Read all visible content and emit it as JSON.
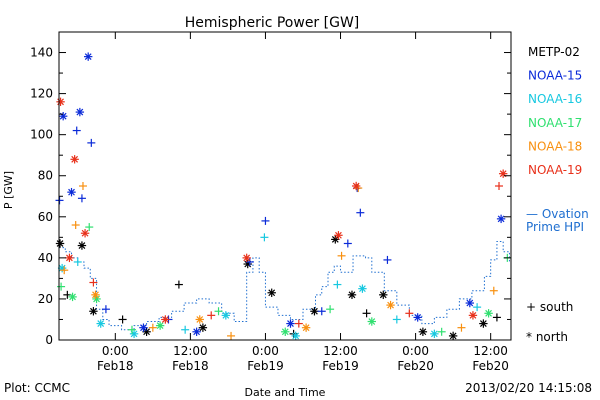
{
  "chart_data": {
    "type": "scatter",
    "title": "Hemispheric Power [GW]",
    "ylabel": "P [GW]",
    "xlabel": "Date and Time",
    "ylim": [
      0,
      150
    ],
    "yticks": [
      0,
      20,
      40,
      60,
      80,
      100,
      120,
      140
    ],
    "xlim": [
      "2013-02-17T15:00",
      "2013-02-20T15:15"
    ],
    "xticks": [
      {
        "t": "2013-02-18T00:00",
        "top": "0:00",
        "bottom": "Feb18"
      },
      {
        "t": "2013-02-18T12:00",
        "top": "12:00",
        "bottom": "Feb18"
      },
      {
        "t": "2013-02-19T00:00",
        "top": "0:00",
        "bottom": "Feb19"
      },
      {
        "t": "2013-02-19T12:00",
        "top": "12:00",
        "bottom": "Feb19"
      },
      {
        "t": "2013-02-20T00:00",
        "top": "0:00",
        "bottom": "Feb20"
      },
      {
        "t": "2013-02-20T12:00",
        "top": "12:00",
        "bottom": "Feb20"
      }
    ],
    "legend_placement": "right",
    "marker_legend": [
      {
        "marker": "+",
        "label": "south"
      },
      {
        "marker": "*",
        "label": "north"
      }
    ],
    "series": [
      {
        "name": "METP-02",
        "color": "#000000",
        "points": [
          [
            "2013-02-17T15:10",
            47,
            "*"
          ],
          [
            "2013-02-17T16:20",
            22,
            "+"
          ],
          [
            "2013-02-17T18:40",
            46,
            "*"
          ],
          [
            "2013-02-17T20:30",
            14,
            "*"
          ],
          [
            "2013-02-18T01:10",
            10,
            "+"
          ],
          [
            "2013-02-18T05:00",
            4,
            "*"
          ],
          [
            "2013-02-18T10:10",
            27,
            "+"
          ],
          [
            "2013-02-18T14:00",
            6,
            "*"
          ],
          [
            "2013-02-18T21:10",
            37,
            "*"
          ],
          [
            "2013-02-19T01:00",
            23,
            "*"
          ],
          [
            "2013-02-19T04:30",
            3,
            "+"
          ],
          [
            "2013-02-19T07:50",
            14,
            "*"
          ],
          [
            "2013-02-19T11:10",
            49,
            "*"
          ],
          [
            "2013-02-19T13:50",
            22,
            "*"
          ],
          [
            "2013-02-19T16:10",
            13,
            "+"
          ],
          [
            "2013-02-19T18:50",
            22,
            "*"
          ],
          [
            "2013-02-20T01:10",
            4,
            "*"
          ],
          [
            "2013-02-20T06:00",
            2,
            "*"
          ],
          [
            "2013-02-20T10:50",
            8,
            "*"
          ],
          [
            "2013-02-20T13:00",
            11,
            "+"
          ]
        ]
      },
      {
        "name": "NOAA-15",
        "color": "#0a2ad8",
        "points": [
          [
            "2013-02-17T15:05",
            68,
            "+"
          ],
          [
            "2013-02-17T15:40",
            109,
            "*"
          ],
          [
            "2013-02-17T17:00",
            72,
            "*"
          ],
          [
            "2013-02-17T17:50",
            102,
            "+"
          ],
          [
            "2013-02-17T18:20",
            111,
            "*"
          ],
          [
            "2013-02-17T18:40",
            69,
            "+"
          ],
          [
            "2013-02-17T19:40",
            138,
            "*"
          ],
          [
            "2013-02-17T20:10",
            96,
            "+"
          ],
          [
            "2013-02-17T22:30",
            15,
            "+"
          ],
          [
            "2013-02-18T04:30",
            6,
            "*"
          ],
          [
            "2013-02-18T08:30",
            10,
            "+"
          ],
          [
            "2013-02-18T13:00",
            4,
            "*"
          ],
          [
            "2013-02-18T21:30",
            38,
            "+"
          ],
          [
            "2013-02-19T00:00",
            58,
            "+"
          ],
          [
            "2013-02-19T04:00",
            8,
            "*"
          ],
          [
            "2013-02-19T09:00",
            14,
            "+"
          ],
          [
            "2013-02-19T13:10",
            47,
            "+"
          ],
          [
            "2013-02-19T14:40",
            74,
            "+"
          ],
          [
            "2013-02-19T15:10",
            62,
            "+"
          ],
          [
            "2013-02-19T19:30",
            39,
            "+"
          ],
          [
            "2013-02-20T00:20",
            11,
            "*"
          ],
          [
            "2013-02-20T08:40",
            18,
            "*"
          ],
          [
            "2013-02-20T13:40",
            59,
            "*"
          ]
        ]
      },
      {
        "name": "NOAA-16",
        "color": "#18c8e0",
        "points": [
          [
            "2013-02-17T15:30",
            35,
            "*"
          ],
          [
            "2013-02-17T18:00",
            38,
            "+"
          ],
          [
            "2013-02-17T21:40",
            8,
            "*"
          ],
          [
            "2013-02-18T03:00",
            3,
            "*"
          ],
          [
            "2013-02-18T11:10",
            5,
            "+"
          ],
          [
            "2013-02-18T17:40",
            12,
            "*"
          ],
          [
            "2013-02-18T23:50",
            50,
            "+"
          ],
          [
            "2013-02-19T04:50",
            2,
            "*"
          ],
          [
            "2013-02-19T11:30",
            27,
            "+"
          ],
          [
            "2013-02-19T15:30",
            25,
            "*"
          ],
          [
            "2013-02-19T21:00",
            10,
            "+"
          ],
          [
            "2013-02-20T03:00",
            3,
            "*"
          ],
          [
            "2013-02-20T09:50",
            16,
            "+"
          ]
        ]
      },
      {
        "name": "NOAA-17",
        "color": "#30e070",
        "points": [
          [
            "2013-02-17T15:20",
            26,
            "+"
          ],
          [
            "2013-02-17T17:10",
            21,
            "*"
          ],
          [
            "2013-02-17T19:50",
            55,
            "+"
          ],
          [
            "2013-02-17T21:00",
            20,
            "*"
          ],
          [
            "2013-02-18T02:40",
            5,
            "+"
          ],
          [
            "2013-02-18T07:10",
            7,
            "*"
          ],
          [
            "2013-02-18T16:30",
            14,
            "+"
          ],
          [
            "2013-02-19T03:10",
            4,
            "*"
          ],
          [
            "2013-02-19T10:20",
            15,
            "+"
          ],
          [
            "2013-02-19T17:00",
            9,
            "*"
          ],
          [
            "2013-02-20T04:10",
            4,
            "+"
          ],
          [
            "2013-02-20T11:40",
            13,
            "*"
          ],
          [
            "2013-02-20T14:40",
            40,
            "+"
          ]
        ]
      },
      {
        "name": "NOAA-18",
        "color": "#f89010",
        "points": [
          [
            "2013-02-17T15:50",
            34,
            "+"
          ],
          [
            "2013-02-17T17:40",
            56,
            "+"
          ],
          [
            "2013-02-17T18:50",
            75,
            "+"
          ],
          [
            "2013-02-17T20:50",
            22,
            "*"
          ],
          [
            "2013-02-18T06:00",
            6,
            "+"
          ],
          [
            "2013-02-18T13:30",
            10,
            "*"
          ],
          [
            "2013-02-18T18:30",
            2,
            "+"
          ],
          [
            "2013-02-19T06:30",
            6,
            "*"
          ],
          [
            "2013-02-19T12:10",
            41,
            "+"
          ],
          [
            "2013-02-19T14:50",
            74,
            "+"
          ],
          [
            "2013-02-19T20:00",
            17,
            "*"
          ],
          [
            "2013-02-20T07:20",
            6,
            "+"
          ],
          [
            "2013-02-20T12:30",
            24,
            "+"
          ]
        ]
      },
      {
        "name": "NOAA-19",
        "color": "#e8301a",
        "points": [
          [
            "2013-02-17T15:15",
            116,
            "*"
          ],
          [
            "2013-02-17T16:40",
            40,
            "*"
          ],
          [
            "2013-02-17T17:30",
            88,
            "*"
          ],
          [
            "2013-02-17T19:10",
            52,
            "*"
          ],
          [
            "2013-02-17T20:30",
            28,
            "+"
          ],
          [
            "2013-02-18T08:00",
            10,
            "*"
          ],
          [
            "2013-02-18T15:20",
            12,
            "+"
          ],
          [
            "2013-02-18T21:00",
            40,
            "*"
          ],
          [
            "2013-02-19T05:20",
            8,
            "+"
          ],
          [
            "2013-02-19T11:40",
            51,
            "*"
          ],
          [
            "2013-02-19T14:30",
            75,
            "*"
          ],
          [
            "2013-02-19T23:00",
            13,
            "+"
          ],
          [
            "2013-02-20T09:10",
            12,
            "*"
          ],
          [
            "2013-02-20T13:20",
            75,
            "+"
          ],
          [
            "2013-02-20T14:00",
            81,
            "*"
          ]
        ]
      }
    ],
    "reference_series": {
      "name": "Ovation Prime HPI",
      "color": "#1f6fd0",
      "style": "dotted step",
      "points": [
        [
          "2013-02-17T15:00",
          45
        ],
        [
          "2013-02-17T16:00",
          43
        ],
        [
          "2013-02-17T17:00",
          40
        ],
        [
          "2013-02-17T18:00",
          38
        ],
        [
          "2013-02-17T19:00",
          35
        ],
        [
          "2013-02-17T20:00",
          30
        ],
        [
          "2013-02-17T21:00",
          15
        ],
        [
          "2013-02-17T22:00",
          10
        ],
        [
          "2013-02-17T23:00",
          7
        ],
        [
          "2013-02-18T01:00",
          5
        ],
        [
          "2013-02-18T03:00",
          7
        ],
        [
          "2013-02-18T05:00",
          9
        ],
        [
          "2013-02-18T07:00",
          11
        ],
        [
          "2013-02-18T09:00",
          14
        ],
        [
          "2013-02-18T11:00",
          18
        ],
        [
          "2013-02-18T13:00",
          20
        ],
        [
          "2013-02-18T15:00",
          18
        ],
        [
          "2013-02-18T17:00",
          13
        ],
        [
          "2013-02-18T19:00",
          9
        ],
        [
          "2013-02-18T21:00",
          33
        ],
        [
          "2013-02-18T22:00",
          40
        ],
        [
          "2013-02-18T23:00",
          33
        ],
        [
          "2013-02-19T00:00",
          16
        ],
        [
          "2013-02-19T02:00",
          12
        ],
        [
          "2013-02-19T04:00",
          10
        ],
        [
          "2013-02-19T06:00",
          15
        ],
        [
          "2013-02-19T08:00",
          22
        ],
        [
          "2013-02-19T09:00",
          26
        ],
        [
          "2013-02-19T10:00",
          33
        ],
        [
          "2013-02-19T11:00",
          36
        ],
        [
          "2013-02-19T12:00",
          33
        ],
        [
          "2013-02-19T14:00",
          41
        ],
        [
          "2013-02-19T16:00",
          40
        ],
        [
          "2013-02-19T17:00",
          33
        ],
        [
          "2013-02-19T19:00",
          24
        ],
        [
          "2013-02-19T21:00",
          17
        ],
        [
          "2013-02-19T23:00",
          12
        ],
        [
          "2013-02-20T01:00",
          8
        ],
        [
          "2013-02-20T03:00",
          11
        ],
        [
          "2013-02-20T05:00",
          15
        ],
        [
          "2013-02-20T07:00",
          20
        ],
        [
          "2013-02-20T09:00",
          24
        ],
        [
          "2013-02-20T11:00",
          31
        ],
        [
          "2013-02-20T12:00",
          39
        ],
        [
          "2013-02-20T13:00",
          48
        ],
        [
          "2013-02-20T14:00",
          43
        ],
        [
          "2013-02-20T15:00",
          38
        ]
      ]
    }
  },
  "legend": {
    "ovation_prefix": "— ",
    "ovation_line1": "Ovation",
    "ovation_line2": "Prime HPI"
  },
  "footer": {
    "plot_source": "Plot: CCMC",
    "timestamp": "2013/02/20 14:15:08"
  }
}
